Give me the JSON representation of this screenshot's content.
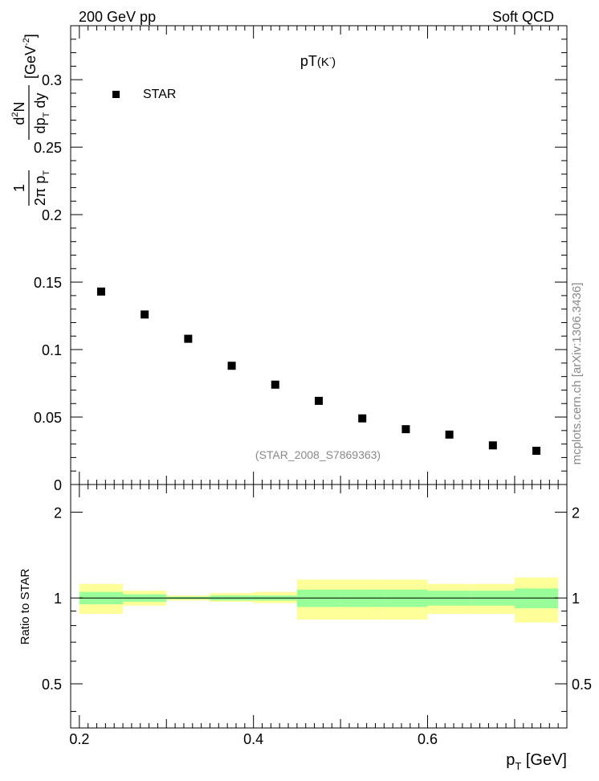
{
  "header": {
    "left": "200 GeV pp",
    "right": "Soft QCD"
  },
  "side_label": "mcplots.cern.ch [arXiv:1306.3436]",
  "chart_data": [
    {
      "type": "scatter",
      "title": "pT",
      "title_particle": "(K",
      "title_superscript": "-",
      "title_close": ")",
      "ylabel": {
        "frac1_num": "1",
        "frac1_den": "2π p",
        "frac1_den_sub": "T",
        "frac2_num": "d",
        "frac2_num_sup": "2",
        "frac2_num_tail": "N",
        "frac2_den": "dp",
        "frac2_den_sub": "T",
        "frac2_den_tail": " dy",
        "unit": "[GeV",
        "unit_sup": "-2",
        "unit_close": "]"
      },
      "xlim": [
        0.19,
        0.76
      ],
      "ylim": [
        0,
        0.34
      ],
      "yticks": [
        "0",
        "0.05",
        "0.1",
        "0.15",
        "0.2",
        "0.25",
        "0.3"
      ],
      "ytick_values": [
        0,
        0.05,
        0.1,
        0.15,
        0.2,
        0.25,
        0.3
      ],
      "legend": {
        "label": "STAR",
        "placement": "top-left"
      },
      "annotation": "(STAR_2008_S7869363)",
      "series": [
        {
          "name": "STAR",
          "x": [
            0.225,
            0.275,
            0.325,
            0.375,
            0.425,
            0.475,
            0.525,
            0.575,
            0.625,
            0.675,
            0.725
          ],
          "y": [
            0.143,
            0.126,
            0.108,
            0.088,
            0.074,
            0.062,
            0.049,
            0.041,
            0.037,
            0.029,
            0.025
          ]
        }
      ]
    },
    {
      "type": "area",
      "ylabel": "Ratio to STAR",
      "xlabel": "p",
      "xlabel_sub": "T",
      "xlabel_tail": " [GeV]",
      "xlim": [
        0.19,
        0.76
      ],
      "ylim": [
        0.35,
        2.5
      ],
      "xticks": [
        "0.2",
        "0.4",
        "0.6"
      ],
      "xtick_values": [
        0.2,
        0.4,
        0.6
      ],
      "yticks": [
        "0.5",
        "1",
        "2"
      ],
      "ytick_values": [
        0.5,
        1,
        2
      ],
      "bins": [
        {
          "lo": 0.2,
          "hi": 0.25,
          "stat": [
            0.95,
            1.05
          ],
          "total": [
            0.88,
            1.12
          ]
        },
        {
          "lo": 0.25,
          "hi": 0.3,
          "stat": [
            0.97,
            1.03
          ],
          "total": [
            0.94,
            1.06
          ]
        },
        {
          "lo": 0.3,
          "hi": 0.35,
          "stat": [
            0.99,
            1.01
          ],
          "total": [
            0.98,
            1.02
          ]
        },
        {
          "lo": 0.35,
          "hi": 0.4,
          "stat": [
            0.98,
            1.02
          ],
          "total": [
            0.97,
            1.04
          ]
        },
        {
          "lo": 0.4,
          "hi": 0.45,
          "stat": [
            0.98,
            1.02
          ],
          "total": [
            0.96,
            1.05
          ]
        },
        {
          "lo": 0.45,
          "hi": 0.5,
          "stat": [
            0.93,
            1.07
          ],
          "total": [
            0.84,
            1.16
          ]
        },
        {
          "lo": 0.5,
          "hi": 0.55,
          "stat": [
            0.93,
            1.07
          ],
          "total": [
            0.84,
            1.16
          ]
        },
        {
          "lo": 0.55,
          "hi": 0.6,
          "stat": [
            0.93,
            1.07
          ],
          "total": [
            0.84,
            1.16
          ]
        },
        {
          "lo": 0.6,
          "hi": 0.65,
          "stat": [
            0.94,
            1.06
          ],
          "total": [
            0.88,
            1.12
          ]
        },
        {
          "lo": 0.65,
          "hi": 0.7,
          "stat": [
            0.94,
            1.06
          ],
          "total": [
            0.88,
            1.12
          ]
        },
        {
          "lo": 0.7,
          "hi": 0.75,
          "stat": [
            0.92,
            1.08
          ],
          "total": [
            0.82,
            1.18
          ]
        }
      ],
      "colors": {
        "stat": "#99ff99",
        "total": "#ffff99"
      }
    }
  ]
}
